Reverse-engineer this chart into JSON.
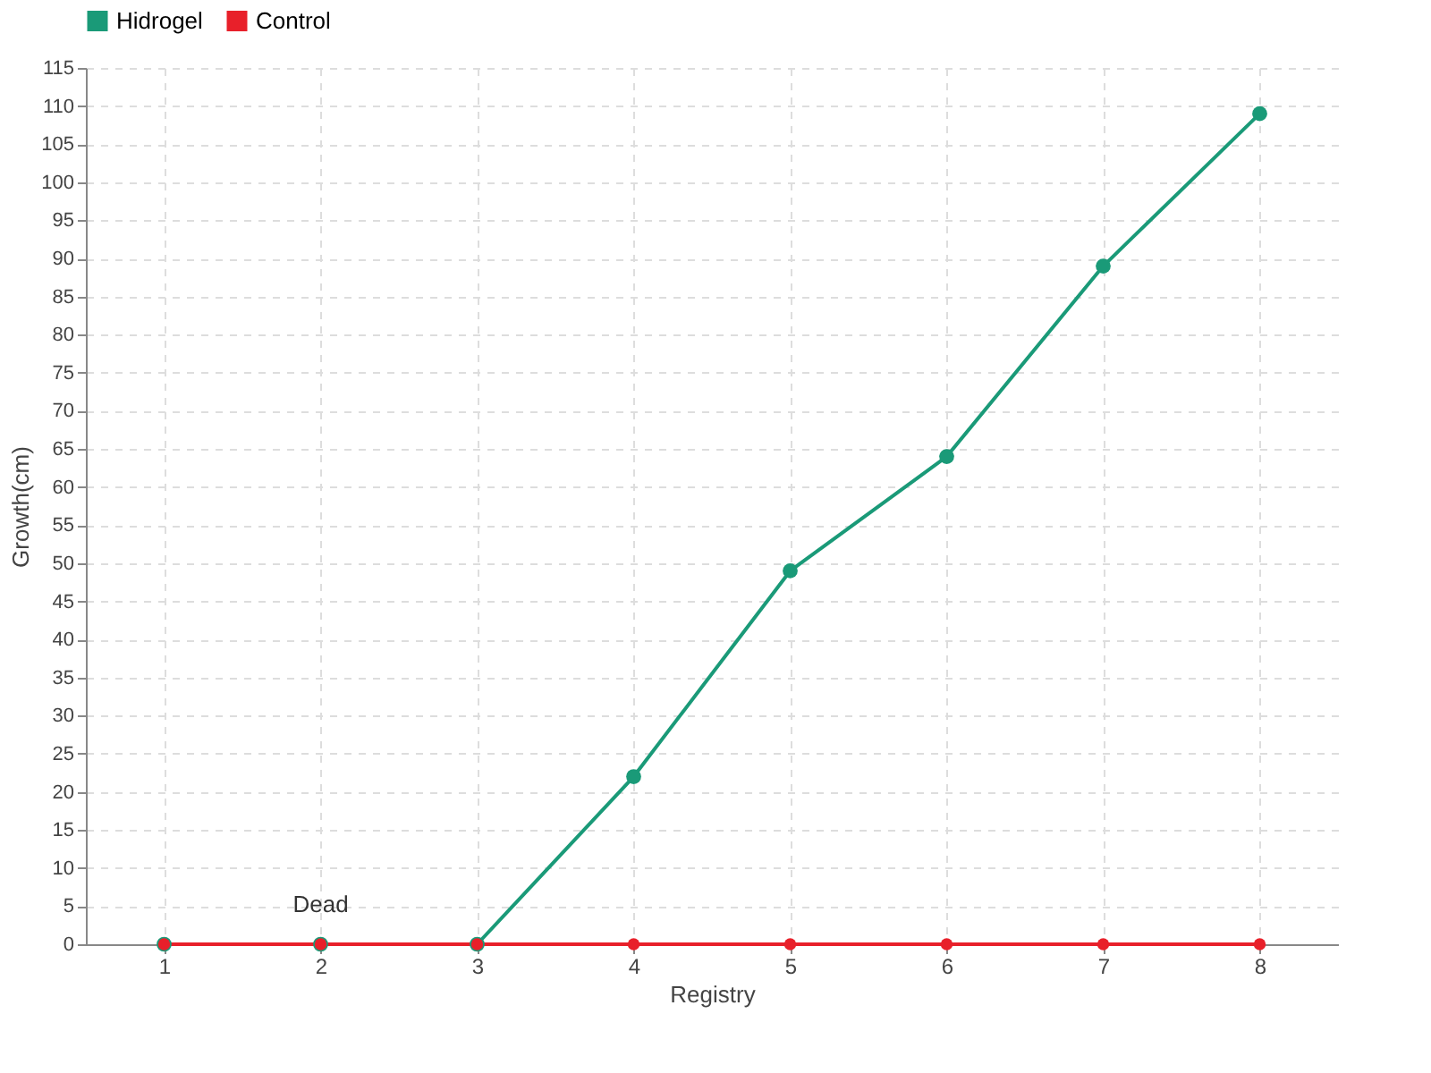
{
  "chart_data": {
    "type": "line",
    "xlabel": "Registry",
    "ylabel": "Growth(cm)",
    "categories": [
      "1",
      "2",
      "3",
      "4",
      "5",
      "6",
      "7",
      "8"
    ],
    "series": [
      {
        "name": "Hidrogel",
        "color": "#1a9a78",
        "values": [
          0,
          0,
          0,
          22,
          49,
          64,
          89,
          109
        ]
      },
      {
        "name": "Control",
        "color": "#e8202a",
        "values": [
          0,
          0,
          0,
          0,
          0,
          0,
          0,
          0
        ]
      }
    ],
    "ylim": [
      0,
      115
    ],
    "yticks": [
      0,
      5,
      10,
      15,
      20,
      25,
      30,
      35,
      40,
      45,
      50,
      55,
      60,
      65,
      70,
      75,
      80,
      85,
      90,
      95,
      100,
      105,
      110,
      115
    ],
    "grid": true,
    "legend": "top left",
    "marker": "circle",
    "line_style": "solid",
    "annotations": [
      {
        "text": "Dead",
        "x": "2",
        "y": 0
      }
    ]
  }
}
